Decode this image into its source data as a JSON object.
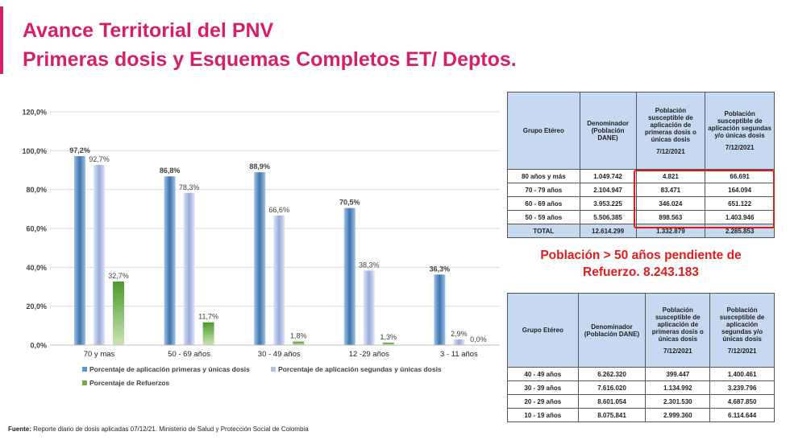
{
  "title": {
    "line1": "Avance Territorial del PNV",
    "line2": "Primeras dosis y Esquemas Completos ET/  Deptos."
  },
  "colors": {
    "accent": "#d61f69",
    "highlight": "#e01b1b",
    "series1": "#5b9bd5",
    "series2": "#b4c3ea",
    "series3": "#6fad47",
    "table_header": "#c6d9f1"
  },
  "chart_data": {
    "type": "bar",
    "categories": [
      "70  y mas",
      "50 - 69 años",
      "30 - 49 años",
      "12 -29 años",
      "3 - 11 años"
    ],
    "series": [
      {
        "name": "Porcentaje de aplicación primeras y únicas dosis",
        "values": [
          97.2,
          86.8,
          88.9,
          70.5,
          36.3
        ],
        "labels": [
          "97,2%",
          "86,8%",
          "88,9%",
          "70,5%",
          "36,3%"
        ]
      },
      {
        "name": "Porcentaje de aplicación segundas y únicas dosis",
        "values": [
          92.7,
          78.3,
          66.6,
          38.3,
          2.9
        ],
        "labels": [
          "92,7%",
          "78,3%",
          "66,6%",
          "38,3%",
          "2,9%"
        ]
      },
      {
        "name": "Porcentaje de Refuerzos",
        "values": [
          32.7,
          11.7,
          1.8,
          1.3,
          0.0
        ],
        "labels": [
          "32,7%",
          "11,7%",
          "1,8%",
          "1,3%",
          "0,0%"
        ]
      }
    ],
    "yticks": [
      "0,0%",
      "20,0%",
      "40,0%",
      "60,0%",
      "80,0%",
      "100,0%",
      "120,0%"
    ],
    "ylim": [
      0,
      120
    ],
    "grid": true,
    "legend": "bottom-left"
  },
  "table1": {
    "headers": [
      "Grupo Etéreo",
      "Denominador (Población DANE)",
      "Población susceptible de aplicación de primeras dosis o únicas dosis",
      "Población susceptible de aplicación segundas y/o únicas dosis"
    ],
    "header_dates": [
      "",
      "",
      "7/12/2021",
      "7/12/2021"
    ],
    "rows": [
      [
        "80 años y más",
        "1.049.742",
        "4.821",
        "66.691"
      ],
      [
        "70 - 79 años",
        "2.104.947",
        "83.471",
        "164.094"
      ],
      [
        "60 - 69 años",
        "3.953.225",
        "346.024",
        "651.122"
      ],
      [
        "50 - 59 años",
        "5.506.385",
        "898.563",
        "1.403.946"
      ]
    ],
    "total": [
      "TOTAL",
      "12.614.299",
      "1.332.879",
      "2.285.853"
    ]
  },
  "callout": {
    "line1": "Población > 50 años  pendiente de",
    "line2": "Refuerzo. 8.243.183"
  },
  "table2": {
    "headers": [
      "Grupo Etéreo",
      "Denominador (Población DANE)",
      "Población susceptible de aplicación de primeras dosis o únicas dosis",
      "Población susceptible de aplicación segundas y/o únicas dosis"
    ],
    "header_dates": [
      "",
      "",
      "7/12/2021",
      "7/12/2021"
    ],
    "rows": [
      [
        "40 - 49 años",
        "6.262.320",
        "399.447",
        "1.400.461"
      ],
      [
        "30 - 39 años",
        "7.616.020",
        "1.134.992",
        "3.239.796"
      ],
      [
        "20 - 29 años",
        "8.601.054",
        "2.301.530",
        "4.687.850"
      ],
      [
        "10 - 19 años",
        "8.075.841",
        "2.999.360",
        "6.114.644"
      ]
    ]
  },
  "footer": {
    "label": "Fuente:",
    "text": " Reporte diario de dosis aplicadas 07/12/21. Ministerio de Salud y Protección Social de Colombia"
  }
}
